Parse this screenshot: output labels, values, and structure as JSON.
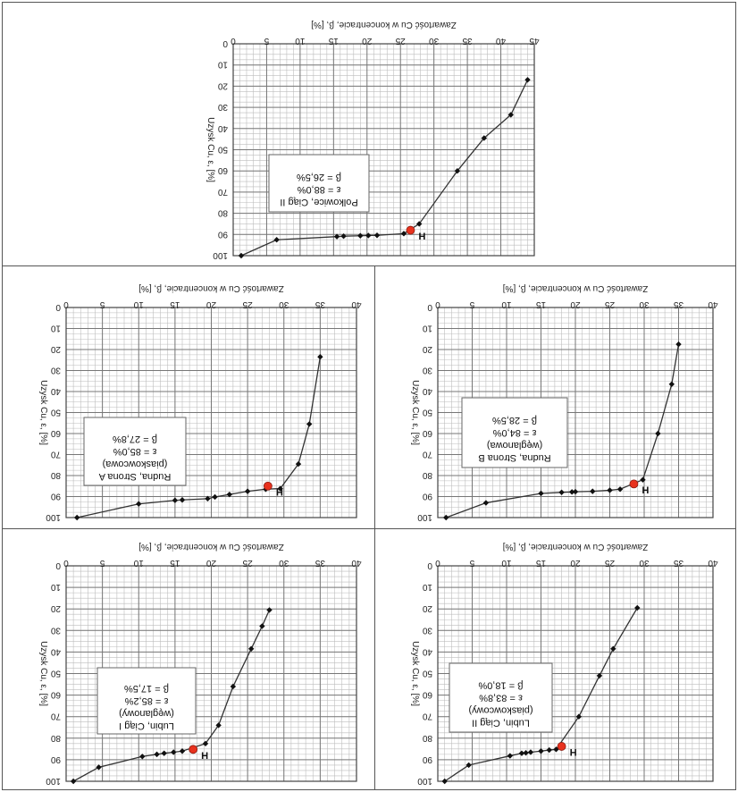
{
  "figure": {
    "axis_title_x": "Zawartość Cu w koncentracie, β, [%]",
    "axis_title_y": "Uzysk Cu, ε, [%]",
    "marker_label": "H",
    "colors": {
      "line": "#333333",
      "marker": "#111111",
      "highlight": "#e8321e",
      "grid_major": "#777777",
      "grid_minor": "#bdbdbd"
    }
  },
  "chart_data": [
    {
      "type": "line",
      "title": "Polkowice, Ciąg II",
      "info_lines": [
        "Polkowice, Ciąg II",
        "ε = 88,0%",
        "β = 26,5%"
      ],
      "xlim": [
        0,
        45
      ],
      "ylim": [
        0,
        100
      ],
      "xticks": [
        0,
        5,
        10,
        15,
        20,
        25,
        30,
        35,
        40,
        45
      ],
      "yticks": [
        0,
        10,
        20,
        30,
        40,
        50,
        60,
        70,
        80,
        90,
        100
      ],
      "x": [
        1.2,
        6.5,
        15.5,
        16.5,
        19.0,
        20.2,
        21.5,
        25.5,
        27.8,
        33.5,
        37.5,
        41.5,
        44.0
      ],
      "y": [
        100.0,
        92.5,
        91.0,
        90.8,
        90.6,
        90.5,
        90.4,
        89.6,
        85.0,
        60.0,
        44.5,
        33.5,
        17.0
      ],
      "highlight": {
        "x": 26.5,
        "y": 88.0
      }
    },
    {
      "type": "line",
      "title": "Rudna, Strona A (piaskowcowa)",
      "info_lines": [
        "Rudna, Strona A",
        "(piaskowcowa)",
        "ε = 85,0%",
        "β = 27,8%"
      ],
      "xlim": [
        0,
        40
      ],
      "ylim": [
        0,
        100
      ],
      "xticks": [
        0,
        5,
        10,
        15,
        20,
        25,
        30,
        35,
        40
      ],
      "yticks": [
        0,
        10,
        20,
        30,
        40,
        50,
        60,
        70,
        80,
        90,
        100
      ],
      "x": [
        1.5,
        10.0,
        15.0,
        16.0,
        19.5,
        20.5,
        22.5,
        25.0,
        27.5,
        29.5,
        32.0,
        33.5,
        35.0
      ],
      "y": [
        100.0,
        93.5,
        91.8,
        91.6,
        91.0,
        90.2,
        89.0,
        87.5,
        86.5,
        86.2,
        74.5,
        55.5,
        23.5
      ],
      "highlight": {
        "x": 27.8,
        "y": 85.0
      }
    },
    {
      "type": "line",
      "title": "Rudna, Strona B (węglanowa)",
      "info_lines": [
        "Rudna, Strona B",
        "(węglanowa)",
        "ε = 84,0%",
        "β = 28,5%"
      ],
      "xlim": [
        0,
        40
      ],
      "ylim": [
        0,
        100
      ],
      "xticks": [
        0,
        5,
        10,
        15,
        20,
        25,
        30,
        35,
        40
      ],
      "yticks": [
        0,
        10,
        20,
        30,
        40,
        50,
        60,
        70,
        80,
        90,
        100
      ],
      "x": [
        1.2,
        7.0,
        15.0,
        18.0,
        19.5,
        20.0,
        22.5,
        25.0,
        26.5,
        29.8,
        32.0,
        34.0,
        35.0
      ],
      "y": [
        100.0,
        93.0,
        88.5,
        88.0,
        87.8,
        87.7,
        87.5,
        87.0,
        86.5,
        82.0,
        60.0,
        36.5,
        17.5
      ],
      "highlight": {
        "x": 28.5,
        "y": 84.0
      }
    },
    {
      "type": "line",
      "title": "Lubin, Ciąg I (węglanowy)",
      "info_lines": [
        "Lubin, Ciąg I",
        "(węglanowy)",
        "ε = 85,2%",
        "β = 17,5%"
      ],
      "xlim": [
        0,
        40
      ],
      "ylim": [
        0,
        100
      ],
      "xticks": [
        0,
        5,
        10,
        15,
        20,
        25,
        30,
        35,
        40
      ],
      "yticks": [
        0,
        10,
        20,
        30,
        40,
        50,
        60,
        70,
        80,
        90,
        100
      ],
      "x": [
        1.0,
        4.5,
        10.5,
        12.5,
        13.5,
        14.8,
        16.0,
        19.2,
        21.0,
        23.0,
        25.5,
        27.0,
        28.0
      ],
      "y": [
        100.0,
        93.5,
        88.5,
        87.5,
        87.0,
        86.5,
        86.0,
        82.5,
        74.0,
        56.0,
        38.5,
        28.0,
        20.5
      ],
      "highlight": {
        "x": 17.5,
        "y": 85.2
      }
    },
    {
      "type": "line",
      "title": "Lubin, Ciąg II (piaskowcowy)",
      "info_lines": [
        "Lubin, Ciąg II",
        "(piaskowcowy)",
        "ε = 83,8%",
        "β = 18,0%"
      ],
      "xlim": [
        0,
        40
      ],
      "ylim": [
        0,
        100
      ],
      "xticks": [
        0,
        5,
        10,
        15,
        20,
        25,
        30,
        35,
        40
      ],
      "yticks": [
        0,
        10,
        20,
        30,
        40,
        50,
        60,
        70,
        80,
        90,
        100
      ],
      "x": [
        1.0,
        4.5,
        10.5,
        12.2,
        12.8,
        13.5,
        15.0,
        16.2,
        17.2,
        20.5,
        23.5,
        25.5,
        29.0
      ],
      "y": [
        100.0,
        92.5,
        88.2,
        87.0,
        86.8,
        86.5,
        86.0,
        85.5,
        85.2,
        70.0,
        51.0,
        38.5,
        19.5
      ],
      "highlight": {
        "x": 18.0,
        "y": 83.8
      }
    }
  ]
}
